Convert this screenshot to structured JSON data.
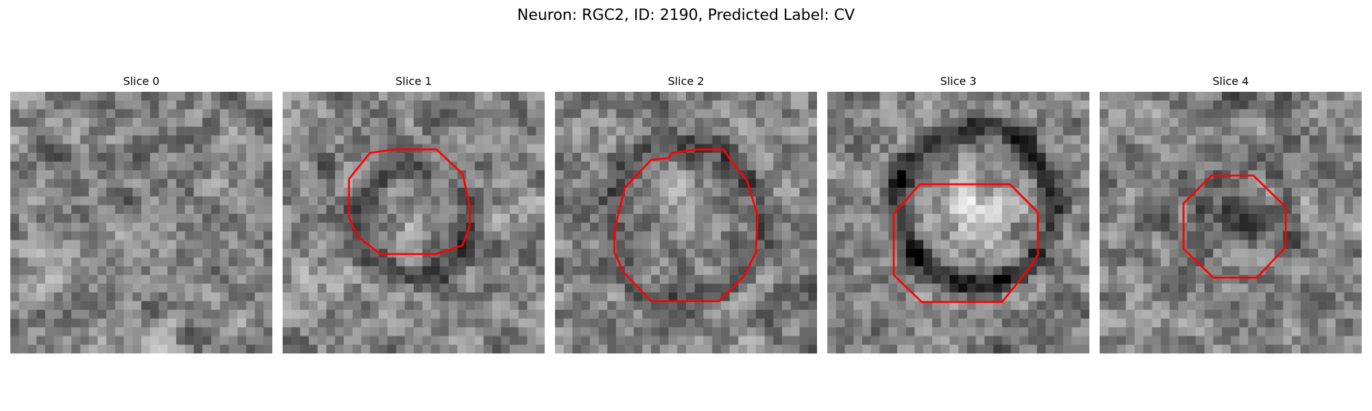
{
  "figure": {
    "title": "Neuron: RGC2, ID: 2190, Predicted Label: CV"
  },
  "slices": [
    {
      "title": "Slice 0",
      "has_contour": false
    },
    {
      "title": "Slice 1",
      "has_contour": true
    },
    {
      "title": "Slice 2",
      "has_contour": true
    },
    {
      "title": "Slice 3",
      "has_contour": true
    },
    {
      "title": "Slice 4",
      "has_contour": true
    }
  ],
  "colors": {
    "contour": "#ff0000",
    "background": "#ffffff",
    "colormap": "grayscale"
  }
}
